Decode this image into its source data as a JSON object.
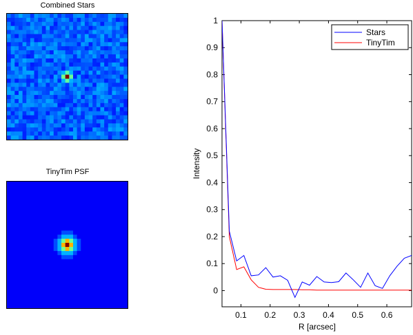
{
  "panels": {
    "top_title": "Combined Stars",
    "bottom_title": "TinyTim PSF"
  },
  "chart_data": {
    "type": "line",
    "title": "",
    "xlabel": "R [arcsec]",
    "ylabel": "Intensity",
    "xlim": [
      0.035,
      0.685
    ],
    "ylim": [
      -0.06,
      1.0
    ],
    "xticks": [
      0.1,
      0.2,
      0.3,
      0.4,
      0.5,
      0.6
    ],
    "xtick_labels": [
      "0.1",
      "0.2",
      "0.3",
      "0.4",
      "0.5",
      "0.6"
    ],
    "yticks": [
      0,
      0.1,
      0.2,
      0.3,
      0.4,
      0.5,
      0.6,
      0.7,
      0.8,
      0.9,
      1
    ],
    "ytick_labels": [
      "0",
      "0.1",
      "0.2",
      "0.3",
      "0.4",
      "0.5",
      "0.6",
      "0.7",
      "0.8",
      "0.9",
      "1"
    ],
    "legend_position": "top-right",
    "grid": false,
    "series": [
      {
        "name": "Stars",
        "color": "#0000ff",
        "x": [
          0.035,
          0.06,
          0.085,
          0.11,
          0.135,
          0.16,
          0.185,
          0.21,
          0.235,
          0.26,
          0.285,
          0.31,
          0.335,
          0.36,
          0.385,
          0.41,
          0.435,
          0.46,
          0.485,
          0.51,
          0.535,
          0.56,
          0.585,
          0.61,
          0.635,
          0.66,
          0.685
        ],
        "values": [
          1.0,
          0.22,
          0.11,
          0.13,
          0.055,
          0.058,
          0.085,
          0.05,
          0.055,
          0.038,
          -0.025,
          0.032,
          0.02,
          0.052,
          0.032,
          0.03,
          0.033,
          0.065,
          0.04,
          0.012,
          0.065,
          0.018,
          0.008,
          0.055,
          0.09,
          0.12,
          0.13
        ]
      },
      {
        "name": "TinyTim",
        "color": "#ff0000",
        "x": [
          0.035,
          0.06,
          0.085,
          0.11,
          0.135,
          0.16,
          0.185,
          0.21,
          0.235,
          0.26,
          0.285,
          0.31,
          0.335,
          0.36,
          0.385,
          0.41,
          0.435,
          0.46,
          0.485,
          0.51,
          0.535,
          0.56,
          0.585,
          0.61,
          0.635,
          0.66,
          0.685
        ],
        "values": [
          1.0,
          0.2,
          0.078,
          0.088,
          0.04,
          0.012,
          0.005,
          0.004,
          0.004,
          0.004,
          0.004,
          0.003,
          0.003,
          0.002,
          0.002,
          0.002,
          0.002,
          0.002,
          0.002,
          0.002,
          0.002,
          0.002,
          0.002,
          0.002,
          0.002,
          0.002,
          0.002
        ]
      }
    ]
  }
}
